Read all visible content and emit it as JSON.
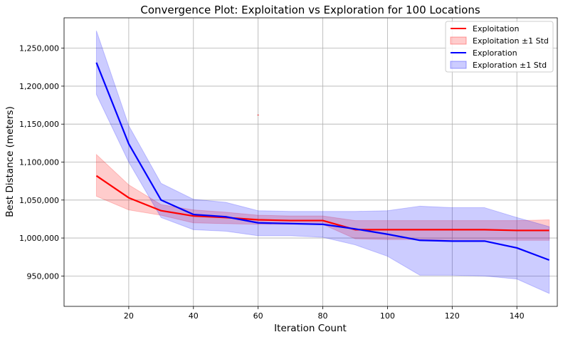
{
  "chart_data": {
    "type": "line",
    "title": "Convergence Plot: Exploitation vs Exploration for 100 Locations",
    "xlabel": "Iteration Count",
    "ylabel": "Best Distance (meters)",
    "xlim": [
      0,
      152.5
    ],
    "ylim": [
      910000,
      1290000
    ],
    "xticks": [
      20,
      40,
      60,
      80,
      100,
      120,
      140
    ],
    "yticks": [
      950000,
      1000000,
      1050000,
      1100000,
      1150000,
      1200000,
      1250000
    ],
    "ytick_labels": [
      "950,000",
      "1,000,000",
      "1,050,000",
      "1,100,000",
      "1,150,000",
      "1,200,000",
      "1,250,000"
    ],
    "grid": true,
    "legend_position": "top-right",
    "x": [
      10,
      20,
      30,
      40,
      50,
      60,
      70,
      80,
      90,
      100,
      110,
      120,
      130,
      140,
      150
    ],
    "series": [
      {
        "name": "Exploitation",
        "band_name": "Exploitation ±1 Std",
        "color": "#ff0000",
        "band_color": "#ff0000",
        "values": [
          1082000,
          1053000,
          1036000,
          1029000,
          1027000,
          1024000,
          1023000,
          1023000,
          1011000,
          1011000,
          1011000,
          1011000,
          1011000,
          1010000,
          1010000
        ],
        "lower": [
          1055000,
          1037000,
          1030000,
          1020000,
          1019000,
          1018000,
          1018000,
          1018000,
          999000,
          998000,
          998000,
          998000,
          998000,
          997000,
          997000
        ],
        "upper": [
          1110000,
          1070000,
          1044000,
          1037000,
          1034000,
          1030000,
          1029000,
          1029000,
          1023000,
          1023000,
          1023000,
          1023000,
          1023000,
          1023000,
          1024000
        ]
      },
      {
        "name": "Exploration",
        "band_name": "Exploration ±1 Std",
        "color": "#0000ff",
        "band_color": "#0000ff",
        "values": [
          1231000,
          1124000,
          1050000,
          1031000,
          1028000,
          1020000,
          1019000,
          1018000,
          1012000,
          1005000,
          997000,
          996000,
          996000,
          987000,
          971000
        ],
        "lower": [
          1189000,
          1100000,
          1027000,
          1011000,
          1009000,
          1003000,
          1003000,
          1001000,
          991000,
          976000,
          951000,
          951000,
          950000,
          946000,
          927000
        ],
        "upper": [
          1273000,
          1148000,
          1072000,
          1051000,
          1047000,
          1036000,
          1035000,
          1035000,
          1035000,
          1036000,
          1042000,
          1040000,
          1040000,
          1027000,
          1015000
        ]
      }
    ],
    "annotations": [
      {
        "text": "-",
        "x": 60,
        "y": 1163000,
        "color": "#ff0000"
      }
    ]
  }
}
